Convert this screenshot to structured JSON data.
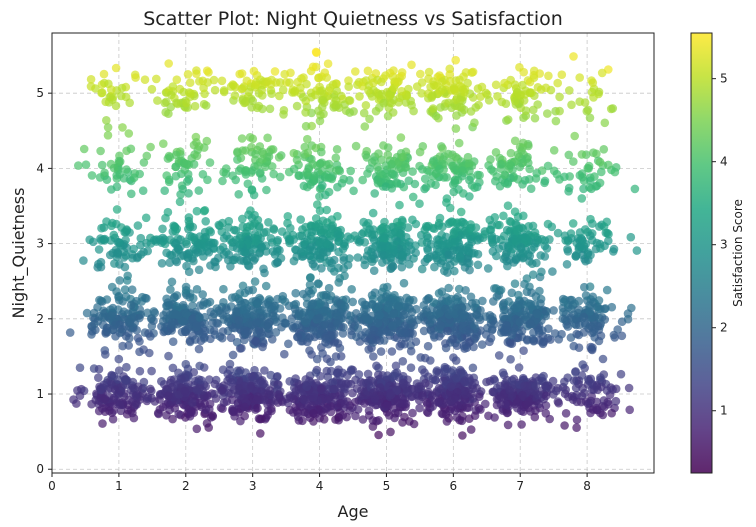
{
  "chart_data": {
    "type": "scatter",
    "title": "Scatter Plot: Night Quietness vs Satisfaction",
    "xlabel": "Age",
    "ylabel": "Night_Quietness",
    "xlim": [
      0,
      9
    ],
    "ylim": [
      -0.05,
      5.8
    ],
    "xticks": [
      "0",
      "1",
      "2",
      "3",
      "4",
      "5",
      "6",
      "7",
      "8"
    ],
    "yticks": [
      "0",
      "1",
      "2",
      "3",
      "4",
      "5"
    ],
    "grid": true,
    "colormap": "viridis",
    "colorbar": {
      "label": "Satisfaction Score",
      "range": [
        0.25,
        5.55
      ],
      "ticks": [
        "1",
        "2",
        "3",
        "4",
        "5"
      ]
    },
    "marker_alpha": 0.7,
    "clusters_note": "points cluster around integer Age (1–8) and integer Night_Quietness (1–5); color follows satisfaction which tracks Night_Quietness",
    "clusters": [
      {
        "x": 1,
        "y": 1,
        "count": 130
      },
      {
        "x": 2,
        "y": 1,
        "count": 170
      },
      {
        "x": 3,
        "y": 1,
        "count": 190
      },
      {
        "x": 4,
        "y": 1,
        "count": 200
      },
      {
        "x": 5,
        "y": 1,
        "count": 210
      },
      {
        "x": 6,
        "y": 1,
        "count": 200
      },
      {
        "x": 7,
        "y": 1,
        "count": 180
      },
      {
        "x": 8,
        "y": 1,
        "count": 80
      },
      {
        "x": 1,
        "y": 2,
        "count": 120
      },
      {
        "x": 2,
        "y": 2,
        "count": 170
      },
      {
        "x": 3,
        "y": 2,
        "count": 190
      },
      {
        "x": 4,
        "y": 2,
        "count": 200
      },
      {
        "x": 5,
        "y": 2,
        "count": 210
      },
      {
        "x": 6,
        "y": 2,
        "count": 200
      },
      {
        "x": 7,
        "y": 2,
        "count": 180
      },
      {
        "x": 8,
        "y": 2,
        "count": 110
      },
      {
        "x": 1,
        "y": 3,
        "count": 70
      },
      {
        "x": 2,
        "y": 3,
        "count": 100
      },
      {
        "x": 3,
        "y": 3,
        "count": 120
      },
      {
        "x": 4,
        "y": 3,
        "count": 130
      },
      {
        "x": 5,
        "y": 3,
        "count": 140
      },
      {
        "x": 6,
        "y": 3,
        "count": 140
      },
      {
        "x": 7,
        "y": 3,
        "count": 120
      },
      {
        "x": 8,
        "y": 3,
        "count": 60
      },
      {
        "x": 1,
        "y": 4,
        "count": 40
      },
      {
        "x": 2,
        "y": 4,
        "count": 50
      },
      {
        "x": 3,
        "y": 4,
        "count": 60
      },
      {
        "x": 4,
        "y": 4,
        "count": 70
      },
      {
        "x": 5,
        "y": 4,
        "count": 80
      },
      {
        "x": 6,
        "y": 4,
        "count": 85
      },
      {
        "x": 7,
        "y": 4,
        "count": 60
      },
      {
        "x": 8,
        "y": 4,
        "count": 40
      },
      {
        "x": 1,
        "y": 5,
        "count": 30
      },
      {
        "x": 2,
        "y": 5,
        "count": 50
      },
      {
        "x": 3,
        "y": 5,
        "count": 60
      },
      {
        "x": 4,
        "y": 5,
        "count": 70
      },
      {
        "x": 5,
        "y": 5,
        "count": 80
      },
      {
        "x": 6,
        "y": 5,
        "count": 85
      },
      {
        "x": 7,
        "y": 5,
        "count": 60
      },
      {
        "x": 8,
        "y": 5,
        "count": 25
      }
    ],
    "spread": {
      "x": 0.24,
      "y": 0.18
    }
  }
}
